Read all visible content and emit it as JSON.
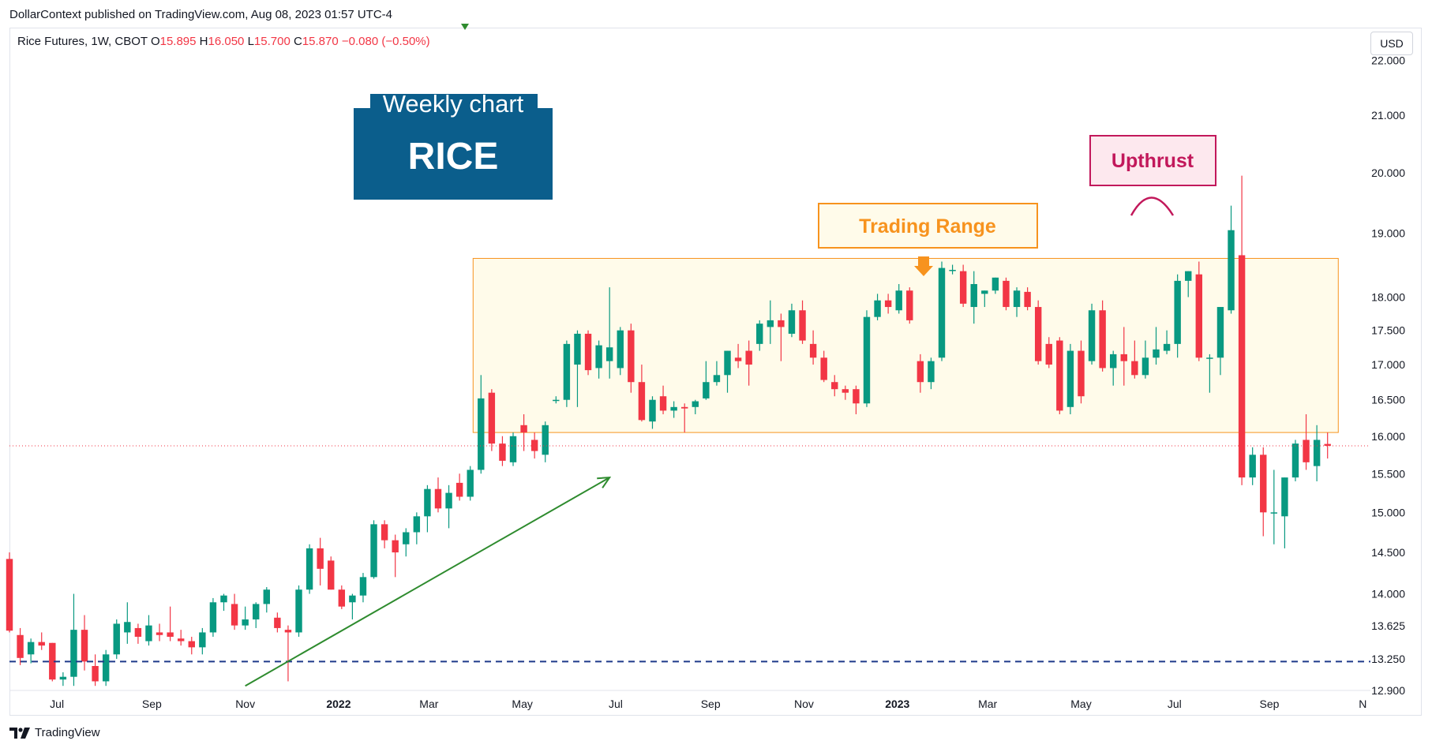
{
  "publisher_line": "DollarContext published on TradingView.com, Aug 08, 2023 01:57 UTC-4",
  "legend": {
    "symbol": "Rice Futures, 1W, CBOT",
    "o_label": "O",
    "o": "15.895",
    "h_label": "H",
    "h": "16.050",
    "l_label": "L",
    "l": "15.700",
    "c_label": "C",
    "c": "15.870",
    "change": "−0.080 (−0.50%)"
  },
  "currency": "USD",
  "footer_brand": "TradingView",
  "colors": {
    "up": "#089981",
    "down": "#f23645",
    "title_box": "#0b5e8c",
    "range_fill": "#fffbea",
    "range_border": "#f7931e",
    "upthrust": "#c2185b",
    "trend_arrow": "#2e8b2e",
    "support_line": "#1e3a8a"
  },
  "chart_data": {
    "type": "candlestick",
    "timeframe": "1W",
    "x_start": "2021-05-31",
    "x_end": "2023-11-06",
    "ylim": [
      12.9,
      22.6
    ],
    "y_scale": "log",
    "y_ticks": [
      "22.000",
      "21.000",
      "20.000",
      "19.000",
      "18.000",
      "17.500",
      "17.000",
      "16.500",
      "16.000",
      "15.500",
      "15.000",
      "14.500",
      "14.000",
      "13.625",
      "13.250",
      "12.900"
    ],
    "x_ticks": [
      {
        "date": "2021-07-01",
        "label": "Jul",
        "bold": false
      },
      {
        "date": "2021-09-01",
        "label": "Sep",
        "bold": false
      },
      {
        "date": "2021-11-01",
        "label": "Nov",
        "bold": false
      },
      {
        "date": "2022-01-01",
        "label": "2022",
        "bold": true
      },
      {
        "date": "2022-03-01",
        "label": "Mar",
        "bold": false
      },
      {
        "date": "2022-05-01",
        "label": "May",
        "bold": false
      },
      {
        "date": "2022-07-01",
        "label": "Jul",
        "bold": false
      },
      {
        "date": "2022-09-01",
        "label": "Sep",
        "bold": false
      },
      {
        "date": "2022-11-01",
        "label": "Nov",
        "bold": false
      },
      {
        "date": "2023-01-01",
        "label": "2023",
        "bold": true
      },
      {
        "date": "2023-03-01",
        "label": "Mar",
        "bold": false
      },
      {
        "date": "2023-05-01",
        "label": "May",
        "bold": false
      },
      {
        "date": "2023-07-01",
        "label": "Jul",
        "bold": false
      },
      {
        "date": "2023-09-01",
        "label": "Sep",
        "bold": false
      },
      {
        "date": "2023-11-01",
        "label": "N",
        "bold": false
      }
    ],
    "last_price": 15.87,
    "candles": [
      {
        "date": "2021-05-31",
        "o": 14.42,
        "h": 14.5,
        "l": 13.55,
        "c": 13.57
      },
      {
        "date": "2021-06-07",
        "o": 13.52,
        "h": 13.6,
        "l": 13.18,
        "c": 13.26
      },
      {
        "date": "2021-06-14",
        "o": 13.3,
        "h": 13.48,
        "l": 13.2,
        "c": 13.44
      },
      {
        "date": "2021-06-21",
        "o": 13.44,
        "h": 13.55,
        "l": 13.35,
        "c": 13.4
      },
      {
        "date": "2021-06-28",
        "o": 13.43,
        "h": 13.43,
        "l": 13.0,
        "c": 13.02
      },
      {
        "date": "2021-07-05",
        "o": 13.02,
        "h": 13.1,
        "l": 12.95,
        "c": 13.05
      },
      {
        "date": "2021-07-12",
        "o": 13.05,
        "h": 14.0,
        "l": 12.95,
        "c": 13.58
      },
      {
        "date": "2021-07-19",
        "o": 13.58,
        "h": 13.75,
        "l": 13.12,
        "c": 13.22
      },
      {
        "date": "2021-07-26",
        "o": 13.17,
        "h": 13.3,
        "l": 12.95,
        "c": 13.0
      },
      {
        "date": "2021-08-02",
        "o": 13.0,
        "h": 13.35,
        "l": 12.95,
        "c": 13.3
      },
      {
        "date": "2021-08-09",
        "o": 13.3,
        "h": 13.7,
        "l": 13.25,
        "c": 13.65
      },
      {
        "date": "2021-08-16",
        "o": 13.55,
        "h": 13.9,
        "l": 13.42,
        "c": 13.67
      },
      {
        "date": "2021-08-23",
        "o": 13.6,
        "h": 13.65,
        "l": 13.42,
        "c": 13.5
      },
      {
        "date": "2021-08-30",
        "o": 13.45,
        "h": 13.75,
        "l": 13.4,
        "c": 13.63
      },
      {
        "date": "2021-09-06",
        "o": 13.55,
        "h": 13.65,
        "l": 13.45,
        "c": 13.52
      },
      {
        "date": "2021-09-13",
        "o": 13.55,
        "h": 13.85,
        "l": 13.45,
        "c": 13.5
      },
      {
        "date": "2021-09-20",
        "o": 13.48,
        "h": 13.58,
        "l": 13.4,
        "c": 13.45
      },
      {
        "date": "2021-09-27",
        "o": 13.45,
        "h": 13.5,
        "l": 13.3,
        "c": 13.38
      },
      {
        "date": "2021-10-04",
        "o": 13.38,
        "h": 13.6,
        "l": 13.3,
        "c": 13.55
      },
      {
        "date": "2021-10-11",
        "o": 13.55,
        "h": 13.95,
        "l": 13.5,
        "c": 13.9
      },
      {
        "date": "2021-10-18",
        "o": 13.9,
        "h": 14.0,
        "l": 13.8,
        "c": 13.98
      },
      {
        "date": "2021-10-25",
        "o": 13.88,
        "h": 14.0,
        "l": 13.58,
        "c": 13.63
      },
      {
        "date": "2021-11-01",
        "o": 13.63,
        "h": 13.85,
        "l": 13.58,
        "c": 13.7
      },
      {
        "date": "2021-11-08",
        "o": 13.7,
        "h": 13.9,
        "l": 13.6,
        "c": 13.88
      },
      {
        "date": "2021-11-15",
        "o": 13.88,
        "h": 14.08,
        "l": 13.78,
        "c": 14.05
      },
      {
        "date": "2021-11-22",
        "o": 13.72,
        "h": 13.78,
        "l": 13.55,
        "c": 13.6
      },
      {
        "date": "2021-11-29",
        "o": 13.58,
        "h": 13.63,
        "l": 13.0,
        "c": 13.55
      },
      {
        "date": "2021-12-06",
        "o": 13.55,
        "h": 14.1,
        "l": 13.5,
        "c": 14.05
      },
      {
        "date": "2021-12-13",
        "o": 14.05,
        "h": 14.6,
        "l": 14.0,
        "c": 14.55
      },
      {
        "date": "2021-12-20",
        "o": 14.55,
        "h": 14.68,
        "l": 14.1,
        "c": 14.3
      },
      {
        "date": "2021-12-27",
        "o": 14.4,
        "h": 14.45,
        "l": 14.05,
        "c": 14.05
      },
      {
        "date": "2022-01-03",
        "o": 14.05,
        "h": 14.1,
        "l": 13.82,
        "c": 13.85
      },
      {
        "date": "2022-01-10",
        "o": 13.9,
        "h": 14.0,
        "l": 13.7,
        "c": 13.98
      },
      {
        "date": "2022-01-17",
        "o": 13.98,
        "h": 14.25,
        "l": 13.9,
        "c": 14.2
      },
      {
        "date": "2022-01-24",
        "o": 14.2,
        "h": 14.9,
        "l": 14.18,
        "c": 14.85
      },
      {
        "date": "2022-01-31",
        "o": 14.85,
        "h": 14.9,
        "l": 14.55,
        "c": 14.65
      },
      {
        "date": "2022-02-07",
        "o": 14.65,
        "h": 14.72,
        "l": 14.2,
        "c": 14.5
      },
      {
        "date": "2022-02-14",
        "o": 14.6,
        "h": 14.8,
        "l": 14.45,
        "c": 14.75
      },
      {
        "date": "2022-02-21",
        "o": 14.75,
        "h": 15.0,
        "l": 14.6,
        "c": 14.95
      },
      {
        "date": "2022-02-28",
        "o": 14.95,
        "h": 15.35,
        "l": 14.75,
        "c": 15.3
      },
      {
        "date": "2022-03-07",
        "o": 15.3,
        "h": 15.45,
        "l": 15.0,
        "c": 15.05
      },
      {
        "date": "2022-03-14",
        "o": 15.05,
        "h": 15.35,
        "l": 14.8,
        "c": 15.25
      },
      {
        "date": "2022-03-21",
        "o": 15.38,
        "h": 15.5,
        "l": 15.15,
        "c": 15.2
      },
      {
        "date": "2022-03-28",
        "o": 15.2,
        "h": 15.6,
        "l": 15.15,
        "c": 15.55
      },
      {
        "date": "2022-04-04",
        "o": 15.55,
        "h": 16.85,
        "l": 15.5,
        "c": 16.52
      },
      {
        "date": "2022-04-11",
        "o": 16.6,
        "h": 16.65,
        "l": 15.8,
        "c": 15.9
      },
      {
        "date": "2022-04-18",
        "o": 15.9,
        "h": 16.0,
        "l": 15.6,
        "c": 15.67
      },
      {
        "date": "2022-04-25",
        "o": 15.65,
        "h": 16.05,
        "l": 15.6,
        "c": 16.0
      },
      {
        "date": "2022-05-02",
        "o": 16.15,
        "h": 16.3,
        "l": 15.8,
        "c": 16.05
      },
      {
        "date": "2022-05-09",
        "o": 15.95,
        "h": 16.05,
        "l": 15.7,
        "c": 15.8
      },
      {
        "date": "2022-05-16",
        "o": 15.75,
        "h": 16.2,
        "l": 15.65,
        "c": 16.15
      },
      {
        "date": "2022-05-23",
        "o": 16.5,
        "h": 16.55,
        "l": 16.45,
        "c": 16.5
      },
      {
        "date": "2022-05-30",
        "o": 16.5,
        "h": 17.35,
        "l": 16.4,
        "c": 17.3
      },
      {
        "date": "2022-06-06",
        "o": 17.0,
        "h": 17.5,
        "l": 16.4,
        "c": 17.45
      },
      {
        "date": "2022-06-13",
        "o": 17.45,
        "h": 17.5,
        "l": 16.85,
        "c": 16.92
      },
      {
        "date": "2022-06-20",
        "o": 16.95,
        "h": 17.35,
        "l": 16.8,
        "c": 17.28
      },
      {
        "date": "2022-06-27",
        "o": 17.05,
        "h": 18.15,
        "l": 16.8,
        "c": 17.25
      },
      {
        "date": "2022-07-04",
        "o": 16.95,
        "h": 17.55,
        "l": 16.85,
        "c": 17.5
      },
      {
        "date": "2022-07-11",
        "o": 17.5,
        "h": 17.6,
        "l": 16.6,
        "c": 16.75
      },
      {
        "date": "2022-07-18",
        "o": 16.75,
        "h": 17.0,
        "l": 16.2,
        "c": 16.22
      },
      {
        "date": "2022-07-25",
        "o": 16.2,
        "h": 16.55,
        "l": 16.1,
        "c": 16.5
      },
      {
        "date": "2022-08-01",
        "o": 16.55,
        "h": 16.7,
        "l": 16.3,
        "c": 16.35
      },
      {
        "date": "2022-08-08",
        "o": 16.35,
        "h": 16.48,
        "l": 16.25,
        "c": 16.4
      },
      {
        "date": "2022-08-15",
        "o": 16.4,
        "h": 16.45,
        "l": 16.05,
        "c": 16.38
      },
      {
        "date": "2022-08-22",
        "o": 16.4,
        "h": 16.5,
        "l": 16.3,
        "c": 16.48
      },
      {
        "date": "2022-08-29",
        "o": 16.52,
        "h": 17.05,
        "l": 16.5,
        "c": 16.75
      },
      {
        "date": "2022-09-05",
        "o": 16.75,
        "h": 17.05,
        "l": 16.7,
        "c": 16.85
      },
      {
        "date": "2022-09-12",
        "o": 16.85,
        "h": 17.2,
        "l": 16.6,
        "c": 17.2
      },
      {
        "date": "2022-09-19",
        "o": 17.1,
        "h": 17.3,
        "l": 16.95,
        "c": 17.05
      },
      {
        "date": "2022-09-26",
        "o": 17.2,
        "h": 17.35,
        "l": 16.7,
        "c": 17.0
      },
      {
        "date": "2022-10-03",
        "o": 17.3,
        "h": 17.65,
        "l": 17.2,
        "c": 17.6
      },
      {
        "date": "2022-10-10",
        "o": 17.55,
        "h": 17.95,
        "l": 17.3,
        "c": 17.65
      },
      {
        "date": "2022-10-17",
        "o": 17.65,
        "h": 17.75,
        "l": 17.05,
        "c": 17.55
      },
      {
        "date": "2022-10-24",
        "o": 17.45,
        "h": 17.9,
        "l": 17.4,
        "c": 17.8
      },
      {
        "date": "2022-10-31",
        "o": 17.8,
        "h": 17.95,
        "l": 17.3,
        "c": 17.35
      },
      {
        "date": "2022-11-07",
        "o": 17.3,
        "h": 17.5,
        "l": 17.0,
        "c": 17.1
      },
      {
        "date": "2022-11-14",
        "o": 17.1,
        "h": 17.2,
        "l": 16.75,
        "c": 16.78
      },
      {
        "date": "2022-11-21",
        "o": 16.75,
        "h": 16.85,
        "l": 16.55,
        "c": 16.65
      },
      {
        "date": "2022-11-28",
        "o": 16.65,
        "h": 16.7,
        "l": 16.5,
        "c": 16.6
      },
      {
        "date": "2022-12-05",
        "o": 16.65,
        "h": 16.7,
        "l": 16.3,
        "c": 16.45
      },
      {
        "date": "2022-12-12",
        "o": 16.45,
        "h": 17.8,
        "l": 16.4,
        "c": 17.7
      },
      {
        "date": "2022-12-19",
        "o": 17.7,
        "h": 18.05,
        "l": 17.65,
        "c": 17.95
      },
      {
        "date": "2022-12-26",
        "o": 17.95,
        "h": 18.05,
        "l": 17.75,
        "c": 17.85
      },
      {
        "date": "2023-01-02",
        "o": 17.8,
        "h": 18.2,
        "l": 17.75,
        "c": 18.1
      },
      {
        "date": "2023-01-09",
        "o": 18.1,
        "h": 18.15,
        "l": 17.6,
        "c": 17.65
      },
      {
        "date": "2023-01-16",
        "o": 17.05,
        "h": 17.15,
        "l": 16.6,
        "c": 16.75
      },
      {
        "date": "2023-01-23",
        "o": 16.75,
        "h": 17.1,
        "l": 16.65,
        "c": 17.05
      },
      {
        "date": "2023-01-30",
        "o": 17.1,
        "h": 18.55,
        "l": 17.05,
        "c": 18.45
      },
      {
        "date": "2023-02-06",
        "o": 18.42,
        "h": 18.5,
        "l": 18.35,
        "c": 18.42
      },
      {
        "date": "2023-02-13",
        "o": 18.4,
        "h": 18.5,
        "l": 17.85,
        "c": 17.9
      },
      {
        "date": "2023-02-20",
        "o": 17.85,
        "h": 18.4,
        "l": 17.6,
        "c": 18.2
      },
      {
        "date": "2023-02-27",
        "o": 18.05,
        "h": 18.1,
        "l": 17.85,
        "c": 18.1
      },
      {
        "date": "2023-03-06",
        "o": 18.1,
        "h": 18.3,
        "l": 18.05,
        "c": 18.3
      },
      {
        "date": "2023-03-13",
        "o": 18.25,
        "h": 18.3,
        "l": 17.8,
        "c": 17.85
      },
      {
        "date": "2023-03-20",
        "o": 17.85,
        "h": 18.15,
        "l": 17.7,
        "c": 18.1
      },
      {
        "date": "2023-03-27",
        "o": 18.08,
        "h": 18.15,
        "l": 17.8,
        "c": 17.85
      },
      {
        "date": "2023-04-03",
        "o": 17.85,
        "h": 17.95,
        "l": 17.0,
        "c": 17.05
      },
      {
        "date": "2023-04-10",
        "o": 17.3,
        "h": 17.4,
        "l": 16.95,
        "c": 17.0
      },
      {
        "date": "2023-04-17",
        "o": 17.35,
        "h": 17.4,
        "l": 16.3,
        "c": 16.35
      },
      {
        "date": "2023-04-24",
        "o": 16.4,
        "h": 17.3,
        "l": 16.3,
        "c": 17.2
      },
      {
        "date": "2023-05-01",
        "o": 17.2,
        "h": 17.35,
        "l": 16.45,
        "c": 16.55
      },
      {
        "date": "2023-05-08",
        "o": 17.05,
        "h": 17.9,
        "l": 17.0,
        "c": 17.8
      },
      {
        "date": "2023-05-15",
        "o": 17.8,
        "h": 17.95,
        "l": 16.9,
        "c": 16.95
      },
      {
        "date": "2023-05-22",
        "o": 16.95,
        "h": 17.2,
        "l": 16.7,
        "c": 17.15
      },
      {
        "date": "2023-05-29",
        "o": 17.15,
        "h": 17.55,
        "l": 16.7,
        "c": 17.05
      },
      {
        "date": "2023-06-05",
        "o": 17.05,
        "h": 17.35,
        "l": 16.8,
        "c": 16.85
      },
      {
        "date": "2023-06-12",
        "o": 16.85,
        "h": 17.35,
        "l": 16.8,
        "c": 17.1
      },
      {
        "date": "2023-06-19",
        "o": 17.1,
        "h": 17.55,
        "l": 17.0,
        "c": 17.22
      },
      {
        "date": "2023-06-26",
        "o": 17.2,
        "h": 17.5,
        "l": 17.15,
        "c": 17.3
      },
      {
        "date": "2023-07-03",
        "o": 17.3,
        "h": 18.35,
        "l": 17.1,
        "c": 18.25
      },
      {
        "date": "2023-07-10",
        "o": 18.25,
        "h": 18.4,
        "l": 18.0,
        "c": 18.4
      },
      {
        "date": "2023-07-17",
        "o": 18.35,
        "h": 18.55,
        "l": 17.05,
        "c": 17.1
      },
      {
        "date": "2023-07-24",
        "o": 17.1,
        "h": 17.15,
        "l": 16.6,
        "c": 17.1
      },
      {
        "date": "2023-07-31",
        "o": 17.1,
        "h": 17.85,
        "l": 16.85,
        "c": 17.85
      },
      {
        "date": "2023-08-07",
        "o": 17.8,
        "h": 19.45,
        "l": 17.75,
        "c": 19.05
      },
      {
        "date": "2023-08-14",
        "o": 18.65,
        "h": 19.95,
        "l": 15.35,
        "c": 15.45
      },
      {
        "date": "2023-08-21",
        "o": 15.45,
        "h": 15.85,
        "l": 15.35,
        "c": 15.75
      },
      {
        "date": "2023-08-28",
        "o": 15.75,
        "h": 15.85,
        "l": 14.7,
        "c": 15.0
      },
      {
        "date": "2023-09-04",
        "o": 15.0,
        "h": 15.55,
        "l": 14.6,
        "c": 15.0
      },
      {
        "date": "2023-09-11",
        "o": 14.95,
        "h": 15.45,
        "l": 14.55,
        "c": 15.45
      },
      {
        "date": "2023-09-18",
        "o": 15.45,
        "h": 15.95,
        "l": 15.4,
        "c": 15.9
      },
      {
        "date": "2023-09-25",
        "o": 15.95,
        "h": 16.3,
        "l": 15.55,
        "c": 15.65
      },
      {
        "date": "2023-10-02",
        "o": 15.6,
        "h": 16.15,
        "l": 15.4,
        "c": 15.95
      },
      {
        "date": "2023-10-09",
        "o": 15.895,
        "h": 16.05,
        "l": 15.7,
        "c": 15.87
      }
    ],
    "annotations": {
      "title_top": "Weekly chart",
      "title_main": "RICE",
      "trading_range_label": "Trading Range",
      "upthrust_label": "Upthrust",
      "trading_range": {
        "start": "2022-04-04",
        "end": "2023-10-16",
        "low": 16.05,
        "high": 18.6
      },
      "support_level": 13.22,
      "trend_arrow": {
        "start_date": "2021-11-01",
        "start_price": 12.95,
        "end_date": "2022-06-27",
        "end_price": 15.45
      }
    }
  }
}
